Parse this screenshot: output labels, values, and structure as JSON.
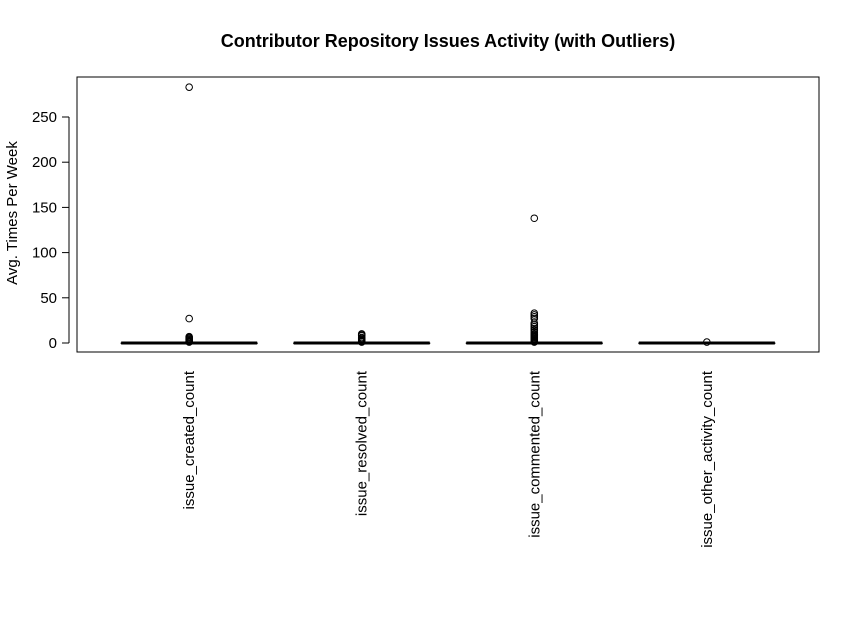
{
  "chart_data": {
    "type": "box",
    "title": "Contributor Repository Issues Activity (with Outliers)",
    "xlabel": "",
    "ylabel": "Avg. Times Per Week",
    "ylim": [
      -10,
      295
    ],
    "yticks": [
      0,
      50,
      100,
      150,
      200,
      250
    ],
    "ytick_labels": [
      "0",
      "50",
      "100",
      "150",
      "200",
      "250"
    ],
    "grid": false,
    "legend": "none",
    "categories": [
      "issue_created_count",
      "issue_resolved_count",
      "issue_commented_count",
      "issue_other_activity_count"
    ],
    "boxes": [
      {
        "category": "issue_created_count",
        "min": 0,
        "q1": 0,
        "median": 0,
        "q3": 0,
        "max": 0,
        "outliers": [
          283,
          27,
          7,
          6,
          5,
          4,
          3,
          2,
          1.5,
          1
        ]
      },
      {
        "category": "issue_resolved_count",
        "min": 0,
        "q1": 0,
        "median": 0,
        "q3": 0,
        "max": 0,
        "outliers": [
          10,
          9,
          8,
          6,
          5,
          4,
          3,
          2,
          1.5,
          1
        ]
      },
      {
        "category": "issue_commented_count",
        "min": 0,
        "q1": 0,
        "median": 0,
        "q3": 0,
        "max": 0,
        "outliers": [
          138,
          33,
          31,
          29,
          27,
          22,
          20,
          18,
          16,
          14,
          12,
          10,
          9,
          8,
          7,
          6,
          5,
          4,
          3,
          2,
          1.5,
          1
        ]
      },
      {
        "category": "issue_other_activity_count",
        "min": 0,
        "q1": 0,
        "median": 0,
        "q3": 0,
        "max": 0,
        "outliers": [
          1
        ]
      }
    ]
  }
}
